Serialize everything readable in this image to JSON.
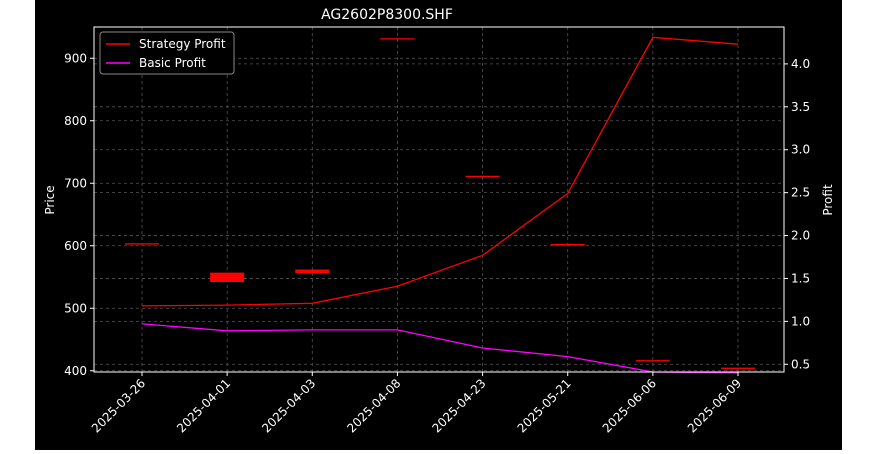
{
  "chart_data": {
    "type": "line",
    "title": "AG2602P8300.SHF",
    "categories": [
      "2025-03-26",
      "2025-04-01",
      "2025-04-03",
      "2025-04-08",
      "2025-04-23",
      "2025-05-21",
      "2025-06-06",
      "2025-06-09"
    ],
    "y_left": {
      "label": "Price",
      "ylim": [
        398,
        950
      ],
      "ticks": [
        400,
        500,
        600,
        700,
        800,
        900
      ]
    },
    "y_right": {
      "label": "Profit",
      "ylim": [
        0.41,
        4.43
      ],
      "ticks": [
        "0.5",
        "1.0",
        "1.5",
        "2.0",
        "2.5",
        "3.0",
        "3.5",
        "4.0"
      ]
    },
    "candles": [
      {
        "x": "2025-03-26",
        "open": 604,
        "close": 604
      },
      {
        "x": "2025-04-01",
        "open": 557,
        "close": 542
      },
      {
        "x": "2025-04-03",
        "open": 562,
        "close": 556
      },
      {
        "x": "2025-04-08",
        "open": 932,
        "close": 932
      },
      {
        "x": "2025-04-23",
        "open": 712,
        "close": 712
      },
      {
        "x": "2025-05-21",
        "open": 603,
        "close": 603
      },
      {
        "x": "2025-06-06",
        "open": 417,
        "close": 417
      },
      {
        "x": "2025-06-09",
        "open": 405,
        "close": 405
      }
    ],
    "series": [
      {
        "name": "Strategy Profit",
        "axis": "right",
        "color": "#ff0000",
        "values": [
          1.18,
          1.19,
          1.21,
          1.41,
          1.77,
          2.49,
          4.31,
          4.23
        ]
      },
      {
        "name": "Basic Profit",
        "axis": "right",
        "color": "#ff00ff",
        "values": [
          0.97,
          0.89,
          0.9,
          0.9,
          0.69,
          0.59,
          0.41,
          0.4
        ]
      }
    ],
    "legend_position": "top-left",
    "grid": true,
    "colors": {
      "background": "#000000",
      "grid": "#555555",
      "text": "#ffffff",
      "candle": "#ff0000"
    }
  }
}
